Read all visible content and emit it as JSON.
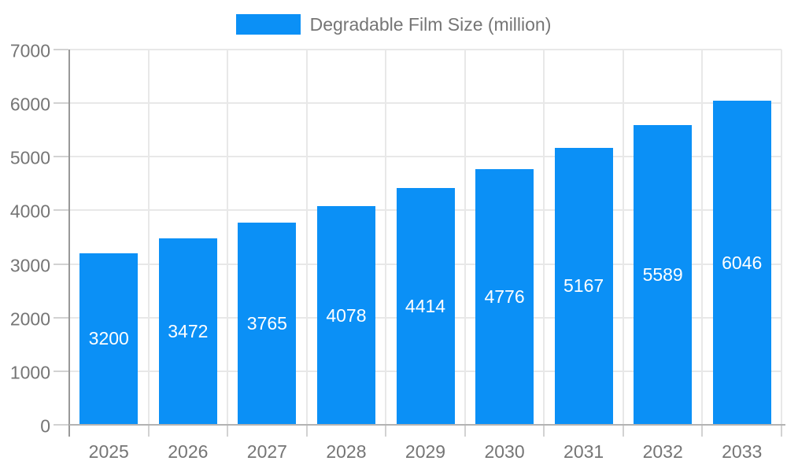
{
  "chart": {
    "background": "#ffffff",
    "grid_color": "#e8e8e8",
    "axis_line_color": "#b3b3b3",
    "y_axis_line_color": "#999999",
    "tick_color": "#d2d2d2",
    "text_color": "#757575",
    "bar_label_color": "#ffffff"
  },
  "legend": {
    "position": "top-center",
    "items": [
      {
        "label": "Degradable Film Size (million)",
        "color": "#0b90f6"
      }
    ]
  },
  "chart_data": {
    "type": "bar",
    "title": "Degradable Film Size (million)",
    "categories": [
      "2025",
      "2026",
      "2027",
      "2028",
      "2029",
      "2030",
      "2031",
      "2032",
      "2033"
    ],
    "series": [
      {
        "name": "Degradable Film Size (million)",
        "color": "#0b90f6",
        "values": [
          3200,
          3472,
          3765,
          4078,
          4414,
          4776,
          5167,
          5589,
          6046
        ]
      }
    ],
    "xlabel": "",
    "ylabel": "",
    "ylim": [
      0,
      7000
    ],
    "ytick_step": 1000,
    "yticks": [
      0,
      1000,
      2000,
      3000,
      4000,
      5000,
      6000,
      7000
    ],
    "grid": true,
    "legend_position": "top",
    "value_labels": "inside-center-white"
  }
}
